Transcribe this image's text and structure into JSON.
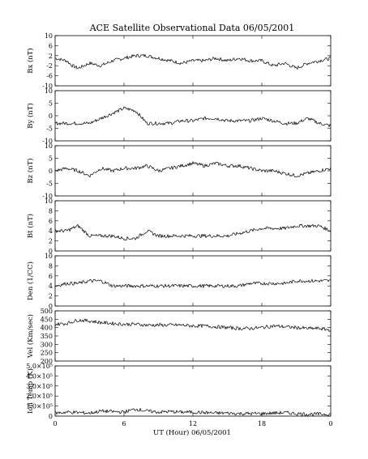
{
  "title": "ACE Satellite Observational Data   06/05/2001",
  "chart_data": {
    "type": "line",
    "title": "ACE Satellite Observational Data   06/05/2001",
    "xlabel": "UT (Hour)   06/05/2001",
    "x_ticks": [
      "0",
      "6",
      "12",
      "18",
      "0"
    ],
    "xlim": [
      0,
      24
    ],
    "panels": [
      {
        "ylabel": "Bx (nT)",
        "ylim": [
          -10,
          10
        ],
        "yticks": [
          "10",
          "6",
          "2",
          "-2",
          "-6",
          "-10"
        ],
        "x": [
          0,
          1,
          1.5,
          2,
          3,
          4,
          5,
          6,
          7,
          8,
          9,
          10,
          11,
          12,
          13,
          14,
          15,
          16,
          17,
          18,
          19,
          20,
          21,
          22,
          23,
          24
        ],
        "values": [
          1,
          0,
          -2,
          -3,
          -1,
          -2,
          0,
          1,
          2,
          2,
          1,
          0,
          -1,
          0,
          0,
          1,
          0,
          1,
          0,
          0,
          -2,
          -1,
          -3,
          -1,
          0,
          1
        ]
      },
      {
        "ylabel": "By (nT)",
        "ylim": [
          -10,
          10
        ],
        "yticks": [
          "10",
          "5",
          "0",
          "-5",
          "-10"
        ],
        "x": [
          0,
          1,
          2,
          3,
          4,
          5,
          6,
          7,
          8,
          9,
          10,
          11,
          12,
          13,
          14,
          15,
          16,
          17,
          18,
          19,
          20,
          21,
          22,
          23,
          24
        ],
        "values": [
          -3,
          -3,
          -3,
          -3,
          -1,
          1,
          3,
          2,
          -3,
          -3,
          -3,
          -2,
          -2,
          -1,
          -1,
          -2,
          -2,
          -2,
          -1,
          -2,
          -3,
          -3,
          -1,
          -3,
          -4
        ]
      },
      {
        "ylabel": "Bz (nT)",
        "ylim": [
          -10,
          10
        ],
        "yticks": [
          "10",
          "5",
          "0",
          "-5",
          "-10"
        ],
        "x": [
          0,
          1,
          2,
          3,
          4,
          5,
          6,
          7,
          8,
          9,
          10,
          11,
          12,
          13,
          14,
          15,
          16,
          17,
          18,
          19,
          20,
          21,
          22,
          23,
          24
        ],
        "values": [
          0,
          1,
          0,
          -2,
          1,
          0,
          1,
          1,
          2,
          0,
          1,
          2,
          3,
          2,
          3,
          2,
          2,
          1,
          0,
          0,
          -1,
          -2,
          -1,
          0,
          1
        ]
      },
      {
        "ylabel": "Bt (nT)",
        "ylim": [
          0,
          10
        ],
        "yticks": [
          "10",
          "8",
          "6",
          "4",
          "2",
          "0"
        ],
        "x": [
          0,
          1,
          2,
          3,
          4,
          5,
          6,
          7,
          8,
          9,
          10,
          11,
          12,
          13,
          14,
          15,
          16,
          17,
          18,
          19,
          20,
          21,
          22,
          23,
          24
        ],
        "values": [
          4,
          4,
          5,
          3,
          3,
          3,
          2.5,
          2.5,
          4,
          3,
          3,
          3,
          3,
          3,
          3,
          3,
          3.5,
          4,
          4.5,
          4.5,
          4.5,
          5,
          5,
          5,
          4
        ]
      },
      {
        "ylabel": "Den (1/CC)",
        "ylim": [
          0,
          10
        ],
        "yticks": [
          "10",
          "8",
          "6",
          "4",
          "2",
          "0"
        ],
        "x": [
          0,
          1,
          2,
          3,
          4,
          5,
          6,
          7,
          8,
          9,
          10,
          11,
          12,
          13,
          14,
          15,
          16,
          17,
          18,
          19,
          20,
          21,
          22,
          23,
          24
        ],
        "values": [
          4,
          4.5,
          4.5,
          5,
          5,
          4,
          4,
          4,
          4,
          4,
          4,
          4,
          4,
          4,
          4,
          4,
          4,
          4.5,
          4.5,
          4.5,
          4.5,
          5,
          5,
          5,
          5
        ]
      },
      {
        "ylabel": "Vel (Km/sec)",
        "ylim": [
          200,
          500
        ],
        "yticks": [
          "500",
          "450",
          "400",
          "350",
          "300",
          "250",
          "200"
        ],
        "x": [
          0,
          1,
          2,
          3,
          4,
          5,
          6,
          7,
          8,
          9,
          10,
          11,
          12,
          13,
          14,
          15,
          16,
          17,
          18,
          19,
          20,
          21,
          22,
          23,
          24
        ],
        "values": [
          420,
          425,
          445,
          440,
          430,
          425,
          420,
          420,
          415,
          415,
          415,
          415,
          410,
          410,
          405,
          400,
          395,
          395,
          400,
          410,
          405,
          400,
          395,
          395,
          385
        ]
      },
      {
        "ylabel": "Ion Temp (K)",
        "ylim": [
          0,
          500000
        ],
        "yticks": [
          "5.0×10⁵",
          "4.0×10⁵",
          "3.0×10⁵",
          "2.0×10⁵",
          "1.0×10⁵",
          "0"
        ],
        "x": [
          0,
          1,
          2,
          3,
          4,
          5,
          6,
          7,
          8,
          9,
          10,
          11,
          12,
          13,
          14,
          15,
          16,
          17,
          18,
          19,
          20,
          21,
          22,
          23,
          24
        ],
        "values": [
          30000,
          40000,
          35000,
          30000,
          50000,
          45000,
          40000,
          70000,
          50000,
          40000,
          45000,
          40000,
          40000,
          35000,
          30000,
          30000,
          25000,
          25000,
          25000,
          30000,
          35000,
          25000,
          20000,
          20000,
          20000
        ]
      }
    ]
  }
}
